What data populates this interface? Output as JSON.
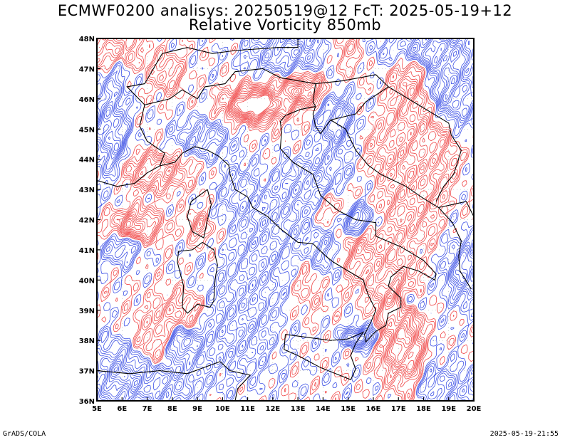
{
  "title": {
    "line1": "ECMWF0200 analisys: 20250519@12 FcT: 2025-05-19+12",
    "line2": "Relative Vorticity 850mb"
  },
  "footer": {
    "left": "GrADS/COLA",
    "right": "2025-05-19-21:55"
  },
  "map": {
    "lon_range": [
      5,
      20
    ],
    "lat_range": [
      36,
      48
    ],
    "x_tick_labels": [
      "5E",
      "6E",
      "7E",
      "8E",
      "9E",
      "10E",
      "11E",
      "12E",
      "13E",
      "14E",
      "15E",
      "16E",
      "17E",
      "18E",
      "19E",
      "20E"
    ],
    "y_tick_labels": [
      "36N",
      "37N",
      "38N",
      "39N",
      "40N",
      "41N",
      "42N",
      "43N",
      "44N",
      "45N",
      "46N",
      "47N",
      "48N"
    ],
    "colors": {
      "positive_vorticity": "#f04646",
      "negative_vorticity": "#3c50e6",
      "coastline": "#000000"
    }
  }
}
